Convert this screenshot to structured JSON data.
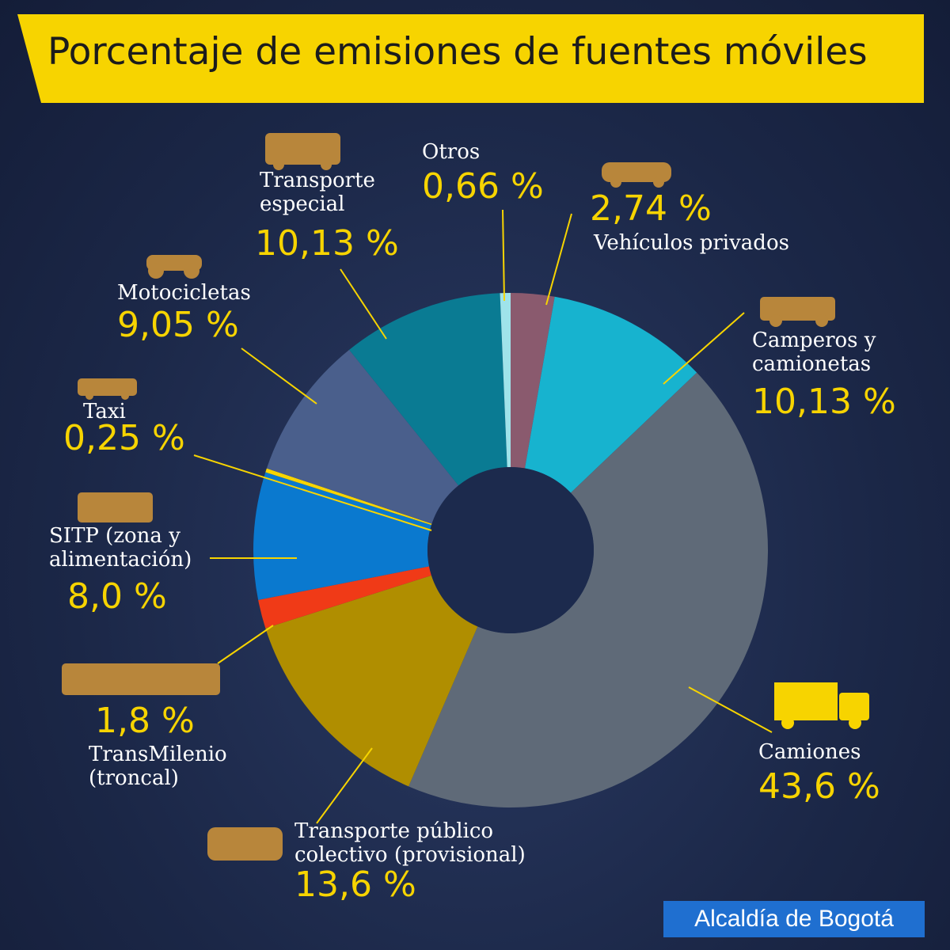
{
  "chart_data": {
    "type": "pie",
    "title": "Porcentaje de emisiones de fuentes móviles",
    "categories": [
      "Vehículos privados",
      "Camperos y camionetas",
      "Camiones",
      "Transporte público colectivo (provisional)",
      "TransMilenio (troncal)",
      "SITP (zona y alimentación)",
      "Taxi",
      "Motocicletas",
      "Transporte especial",
      "Otros"
    ],
    "values": [
      2.74,
      10.13,
      43.6,
      13.6,
      1.8,
      8.0,
      0.25,
      9.05,
      10.13,
      0.66
    ],
    "value_labels": [
      "2,74 %",
      "10,13 %",
      "43,6 %",
      "13,6 %",
      "1,8 %",
      "8,0 %",
      "0,25 %",
      "9,05 %",
      "10,13 %",
      "0,66 %"
    ],
    "colors": [
      "#8a5a6e",
      "#17b3cf",
      "#5f6a78",
      "#b08e00",
      "#f03a17",
      "#0a79cf",
      "#f7d400",
      "#4a5f8c",
      "#0a7b93",
      "#9fe3ea"
    ],
    "donut": true
  },
  "footer": "Alcaldía de Bogotá"
}
